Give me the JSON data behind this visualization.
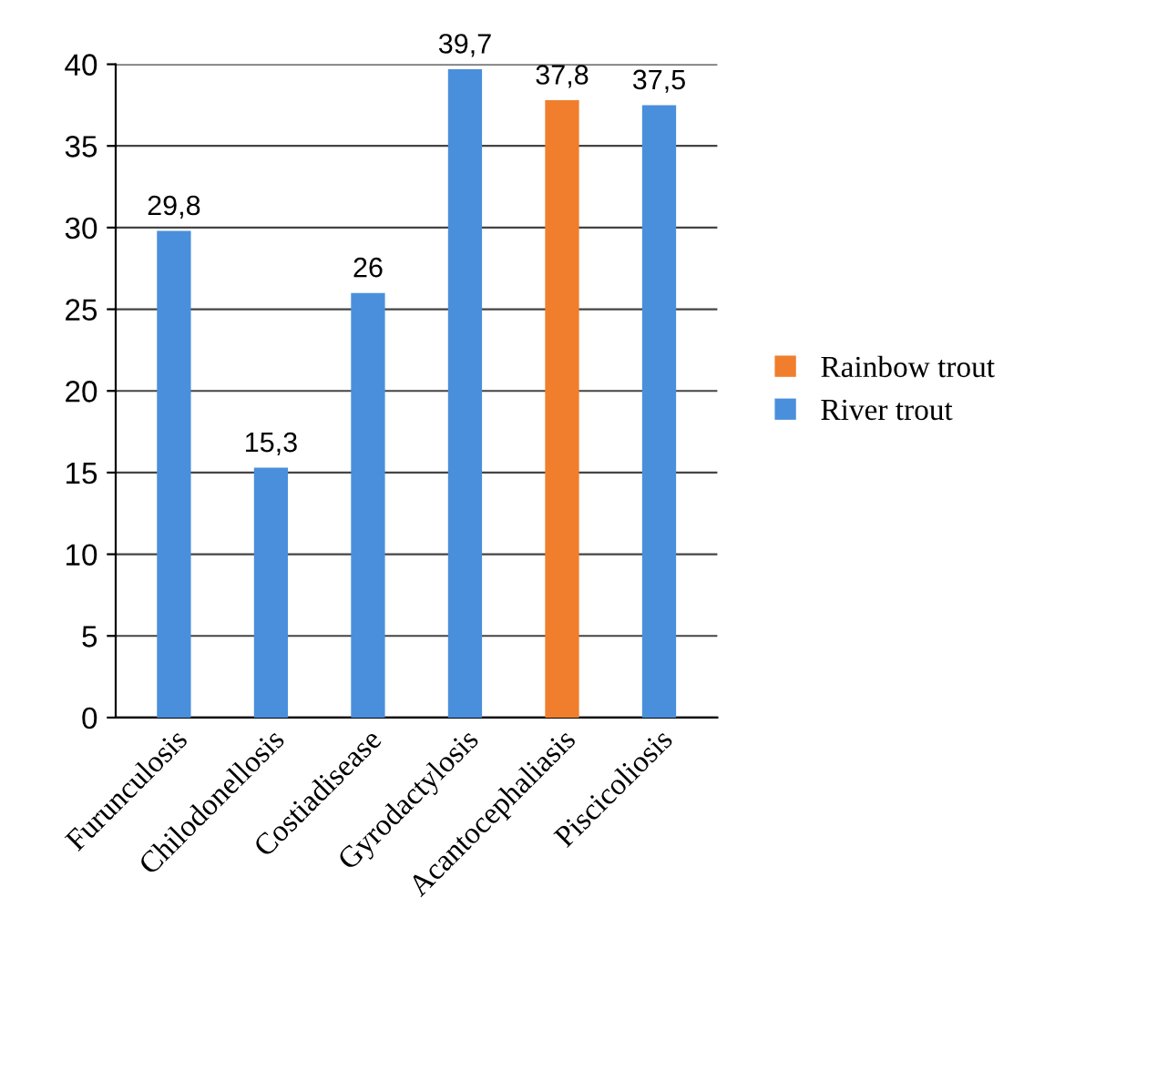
{
  "chart_data": {
    "type": "bar",
    "categories": [
      "Furunculosis",
      "Chilodonellosis",
      "Costiadisease",
      "Gyrodactylosis",
      "Acantocephaliasis",
      "Piscicoliosis"
    ],
    "series": [
      {
        "name": "Rainbow trout",
        "color": "#f07e2c",
        "values": [
          null,
          null,
          null,
          null,
          37.8,
          null
        ],
        "value_labels": [
          null,
          null,
          null,
          null,
          "37,8",
          null
        ]
      },
      {
        "name": "River trout",
        "color": "#4a8fdc",
        "values": [
          29.8,
          15.3,
          26,
          39.7,
          null,
          37.5
        ],
        "value_labels": [
          "29,8",
          "15,3",
          "26",
          "39,7",
          null,
          "37,5"
        ]
      }
    ],
    "ylim": [
      0,
      40
    ],
    "yticks": [
      0,
      5,
      10,
      15,
      20,
      25,
      30,
      35,
      40
    ],
    "grid": "y",
    "legend": "right"
  }
}
